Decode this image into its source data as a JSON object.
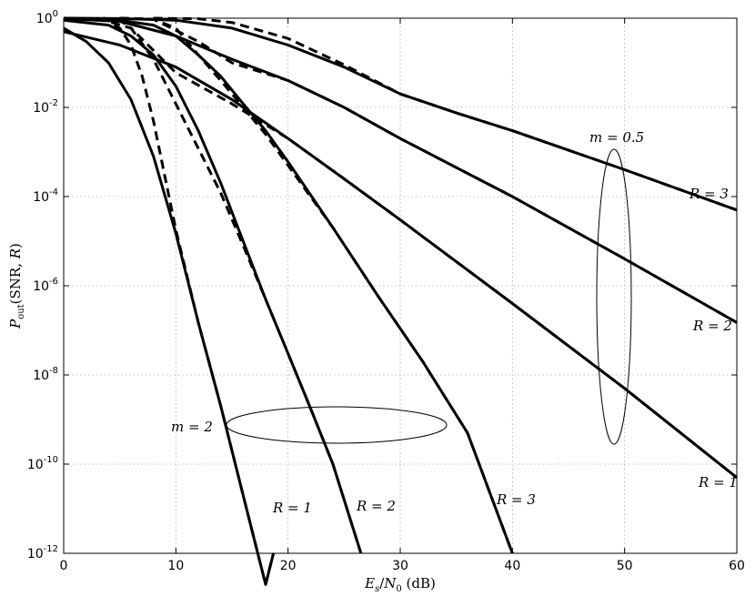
{
  "chart_data": {
    "type": "line",
    "title": "",
    "xlabel": "E_s/N_0 (dB)",
    "ylabel": "P_out(SNR, R)",
    "x_scale": "linear",
    "y_scale": "log",
    "xlim": [
      0,
      60
    ],
    "ylim": [
      1e-12,
      1
    ],
    "grid": true,
    "legend": "none",
    "x_ticks": [
      0,
      10,
      20,
      30,
      40,
      50,
      60
    ],
    "x_tick_labels": [
      "0",
      "10",
      "20",
      "30",
      "40",
      "50",
      "60"
    ],
    "y_ticks": [
      1e-12,
      1e-10,
      1e-08,
      1e-06,
      0.0001,
      0.01,
      1
    ],
    "y_tick_labels": [
      {
        "base": "10",
        "exp": "-12"
      },
      {
        "base": "10",
        "exp": "-10"
      },
      {
        "base": "10",
        "exp": "-8"
      },
      {
        "base": "10",
        "exp": "-6"
      },
      {
        "base": "10",
        "exp": "-4"
      },
      {
        "base": "10",
        "exp": "-2"
      },
      {
        "base": "10",
        "exp": "0"
      }
    ],
    "series": [
      {
        "group": "m = 2",
        "R": "1",
        "style": "solid",
        "x": [
          0,
          2,
          4,
          6,
          8,
          10,
          12,
          14,
          16,
          18,
          18.7
        ],
        "y": [
          0.6,
          0.3,
          0.1,
          0.015,
          0.0008,
          1.5e-05,
          1.5e-07,
          2e-09,
          2e-11,
          2e-13,
          1e-12
        ]
      },
      {
        "group": "m = 2",
        "R": "1",
        "style": "dashed",
        "x": [
          4.5,
          5,
          6,
          7,
          8,
          10,
          12,
          14,
          16,
          18,
          18.7
        ],
        "y": [
          0.7,
          0.6,
          0.25,
          0.05,
          0.005,
          1.8e-05,
          1.5e-07,
          2e-09,
          2e-11,
          2e-13,
          1e-12
        ]
      },
      {
        "group": "m = 2",
        "R": "2",
        "style": "solid",
        "x": [
          0,
          4,
          6,
          8,
          10,
          12,
          14,
          16,
          18,
          20,
          22,
          24,
          26.5
        ],
        "y": [
          0.9,
          0.7,
          0.4,
          0.15,
          0.03,
          0.003,
          0.0002,
          1e-05,
          5e-07,
          3e-08,
          1.8e-09,
          1e-10,
          1e-12
        ]
      },
      {
        "group": "m = 2",
        "R": "2",
        "style": "dashed",
        "x": [
          3.5,
          5,
          6,
          8,
          10,
          12,
          14,
          16,
          18,
          20,
          22,
          24,
          26.5
        ],
        "y": [
          1,
          0.9,
          0.6,
          0.12,
          0.012,
          0.0012,
          0.00012,
          8e-06,
          5e-07,
          3e-08,
          1.8e-09,
          1e-10,
          1e-12
        ]
      },
      {
        "group": "m = 2",
        "R": "3",
        "style": "solid",
        "x": [
          0,
          4,
          8,
          10,
          12,
          14,
          16,
          18,
          20,
          24,
          28,
          32,
          36,
          40
        ],
        "y": [
          1,
          0.97,
          0.7,
          0.4,
          0.15,
          0.05,
          0.012,
          0.003,
          0.0006,
          2e-05,
          6e-07,
          2e-08,
          5e-10,
          1e-12
        ]
      },
      {
        "group": "m = 2",
        "R": "3",
        "style": "dashed",
        "x": [
          5,
          8,
          10,
          12,
          14,
          16,
          18,
          20,
          24,
          28,
          32,
          36,
          40
        ],
        "y": [
          1,
          0.95,
          0.6,
          0.15,
          0.04,
          0.01,
          0.0025,
          0.0005,
          2e-05,
          6e-07,
          2e-08,
          5e-10,
          1e-12
        ]
      },
      {
        "group": "m = 0.5",
        "R": "1",
        "style": "solid",
        "x": [
          0,
          5,
          10,
          15,
          20,
          25,
          30,
          40,
          50,
          60
        ],
        "y": [
          0.5,
          0.25,
          0.08,
          0.015,
          0.002,
          0.00025,
          3e-05,
          4e-07,
          5e-09,
          5e-11
        ]
      },
      {
        "group": "m = 0.5",
        "R": "1",
        "style": "dashed",
        "x": [
          3,
          6,
          10,
          15,
          20,
          25,
          30,
          40,
          50,
          60
        ],
        "y": [
          1,
          0.6,
          0.06,
          0.012,
          0.002,
          0.00025,
          3e-05,
          4e-07,
          5e-09,
          5e-11
        ]
      },
      {
        "group": "m = 0.5",
        "R": "2",
        "style": "solid",
        "x": [
          0,
          5,
          10,
          15,
          20,
          25,
          30,
          40,
          50,
          60
        ],
        "y": [
          0.98,
          0.85,
          0.4,
          0.12,
          0.04,
          0.01,
          0.002,
          0.0001,
          4e-06,
          1.5e-07
        ]
      },
      {
        "group": "m = 0.5",
        "R": "2",
        "style": "dashed",
        "x": [
          5,
          8,
          12,
          15,
          20,
          25,
          30,
          40,
          50,
          60
        ],
        "y": [
          1,
          0.95,
          0.3,
          0.1,
          0.04,
          0.01,
          0.002,
          0.0001,
          4e-06,
          1.5e-07
        ]
      },
      {
        "group": "m = 0.5",
        "R": "3",
        "style": "solid",
        "x": [
          0,
          5,
          10,
          15,
          20,
          25,
          30,
          35,
          40,
          50,
          60
        ],
        "y": [
          1,
          0.98,
          0.9,
          0.6,
          0.25,
          0.08,
          0.02,
          0.0075,
          0.003,
          0.0004,
          5e-05
        ]
      },
      {
        "group": "m = 0.5",
        "R": "3",
        "style": "dashed",
        "x": [
          8,
          12,
          15,
          20,
          25,
          30,
          35,
          40,
          50,
          60
        ],
        "y": [
          1,
          0.97,
          0.8,
          0.35,
          0.09,
          0.02,
          0.0075,
          0.003,
          0.0004,
          5e-05
        ]
      }
    ],
    "annotations": {
      "m2_label": "m = 2",
      "m05_label": "m = 0.5",
      "r_labels": [
        "R = 1",
        "R = 2",
        "R = 3",
        "R = 1",
        "R = 2",
        "R = 3"
      ]
    }
  }
}
